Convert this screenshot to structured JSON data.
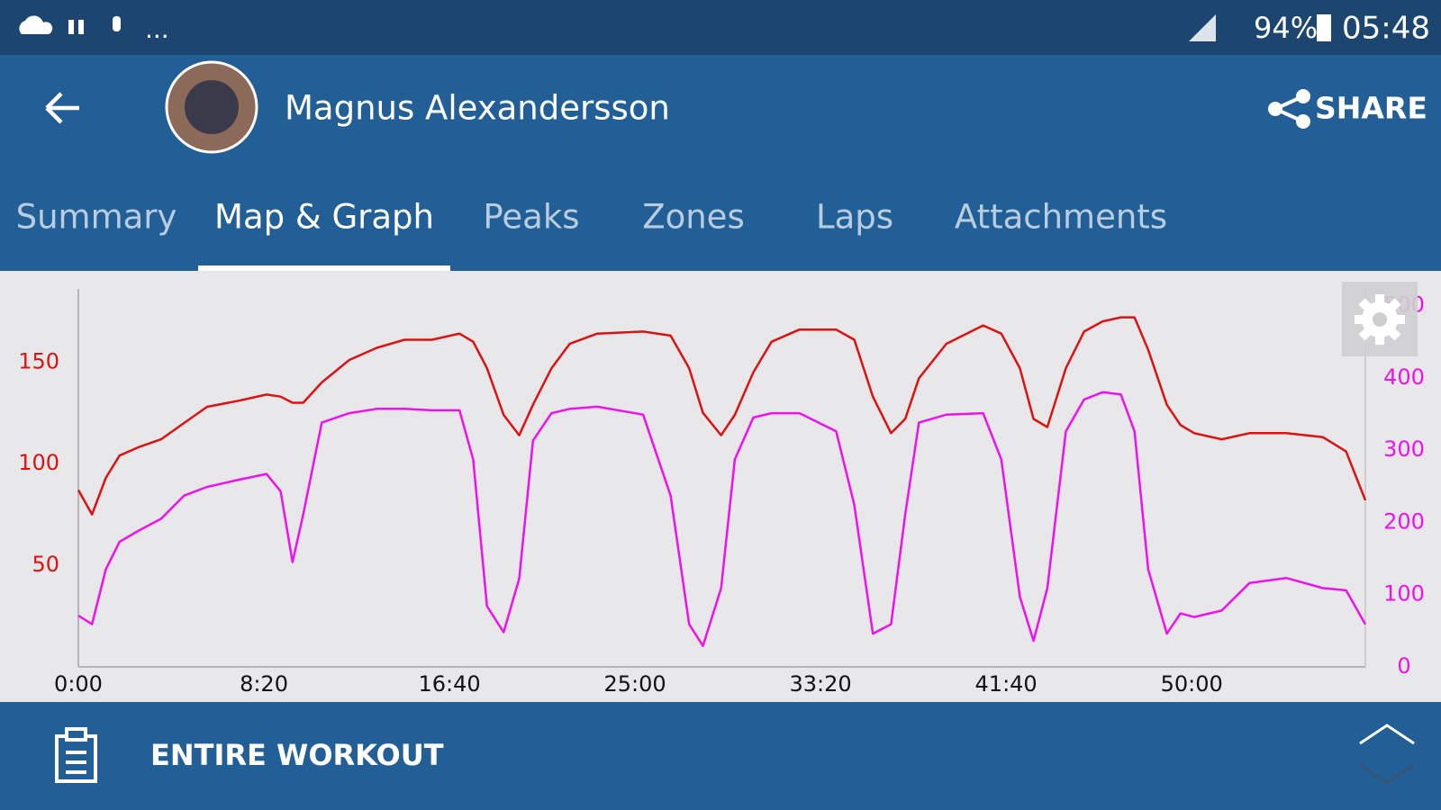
{
  "status_bar": {
    "notification_more": "...",
    "battery": "94%",
    "time": "05:48"
  },
  "header": {
    "user_name": "Magnus Alexandersson",
    "share": "SHARE"
  },
  "tabs": {
    "items": [
      "Summary",
      "Map & Graph",
      "Peaks",
      "Zones",
      "Laps",
      "Attachments"
    ],
    "active": 1
  },
  "bottom_bar": {
    "label": "ENTIRE WORKOUT"
  },
  "chart_data": {
    "type": "line",
    "x": [
      0,
      37,
      74,
      111,
      161,
      223,
      285,
      347,
      433,
      507,
      545,
      577,
      606,
      656,
      730,
      804,
      879,
      953,
      1027,
      1064,
      1101,
      1146,
      1188,
      1225,
      1275,
      1324,
      1398,
      1522,
      1596,
      1646,
      1683,
      1732,
      1769,
      1819,
      1868,
      1943,
      2042,
      2091,
      2141,
      2190,
      2228,
      2265,
      2339,
      2438,
      2487,
      2537,
      2574,
      2611,
      2661,
      2710,
      2760,
      2809,
      2846,
      2883,
      2933,
      2970,
      3007,
      3081,
      3156,
      3255,
      3354,
      3416,
      3468
    ],
    "xlim": [
      0,
      3468
    ],
    "xticks": [
      {
        "value": 0,
        "label": "0:00"
      },
      {
        "value": 500,
        "label": "8:20"
      },
      {
        "value": 1000,
        "label": "16:40"
      },
      {
        "value": 1500,
        "label": "25:00"
      },
      {
        "value": 2000,
        "label": "33:20"
      },
      {
        "value": 2500,
        "label": "41:40"
      },
      {
        "value": 3000,
        "label": "50:00"
      }
    ],
    "ylim": [
      0,
      186
    ],
    "yticks": [
      50,
      100,
      150
    ],
    "y2lim": [
      0,
      523
    ],
    "y2ticks": [
      0,
      100,
      200,
      300,
      400,
      500
    ],
    "grid": false,
    "series": [
      {
        "color": "#dd1111",
        "values": [
          87,
          75,
          93,
          104,
          108,
          112,
          120,
          128,
          131,
          134,
          133,
          130,
          130,
          140,
          151,
          157,
          161,
          161,
          164,
          160,
          147,
          124,
          114,
          129,
          147,
          159,
          164,
          165,
          163,
          147,
          125,
          114,
          124,
          145,
          160,
          166,
          166,
          161,
          133,
          115,
          122,
          142,
          159,
          168,
          164,
          147,
          122,
          118,
          147,
          165,
          170,
          172,
          172,
          156,
          129,
          119,
          115,
          112,
          115,
          115,
          113,
          106,
          82
        ]
      },
      {
        "color": "#ee11ee",
        "axis": "y2",
        "values": [
          71,
          59,
          135,
          173,
          188,
          205,
          237,
          249,
          259,
          267,
          243,
          145,
          211,
          338,
          351,
          357,
          357,
          355,
          355,
          287,
          84,
          48,
          122,
          313,
          351,
          357,
          360,
          349,
          237,
          59,
          29,
          109,
          287,
          345,
          351,
          351,
          326,
          224,
          46,
          59,
          211,
          338,
          349,
          351,
          287,
          97,
          36,
          109,
          326,
          370,
          380,
          377,
          326,
          135,
          46,
          74,
          69,
          78,
          116,
          123,
          109,
          106,
          59
        ]
      }
    ]
  }
}
